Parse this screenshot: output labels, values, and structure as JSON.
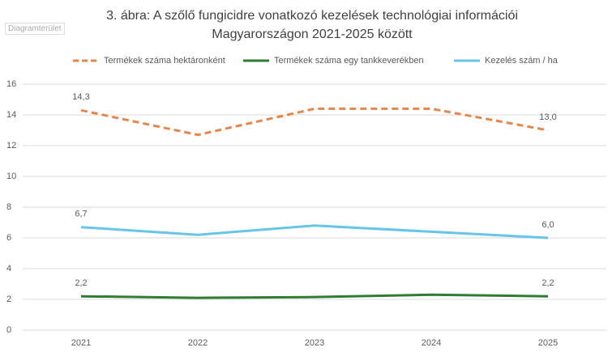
{
  "tooltip": "Diagramterület",
  "chart_data": {
    "type": "line",
    "title": "3. ábra: A szőlő fungicidre vonatkozó kezelések technológiai információi Magyarországon 2021-2025 között",
    "categories": [
      "2021",
      "2022",
      "2023",
      "2024",
      "2025"
    ],
    "series": [
      {
        "name": "Termékek száma hektáronként",
        "color": "#e8864a",
        "dash": true,
        "values": [
          14.3,
          12.7,
          14.4,
          14.4,
          13.0
        ],
        "value_labels": [
          "14,3",
          null,
          null,
          null,
          "13,0"
        ]
      },
      {
        "name": "Termékek száma egy tankkeverékben",
        "color": "#2e7d32",
        "dash": false,
        "values": [
          2.2,
          2.1,
          2.15,
          2.3,
          2.2
        ],
        "value_labels": [
          "2,2",
          null,
          null,
          null,
          "2,2"
        ]
      },
      {
        "name": "Kezelés szám / ha",
        "color": "#66c5ea",
        "dash": false,
        "values": [
          6.7,
          6.2,
          6.8,
          6.4,
          6.0
        ],
        "value_labels": [
          "6,7",
          null,
          null,
          null,
          "6,0"
        ]
      }
    ],
    "ylim": [
      0,
      16
    ],
    "yticks": [
      0,
      2,
      4,
      6,
      8,
      10,
      12,
      14,
      16
    ],
    "grid": true,
    "legend": "top"
  }
}
